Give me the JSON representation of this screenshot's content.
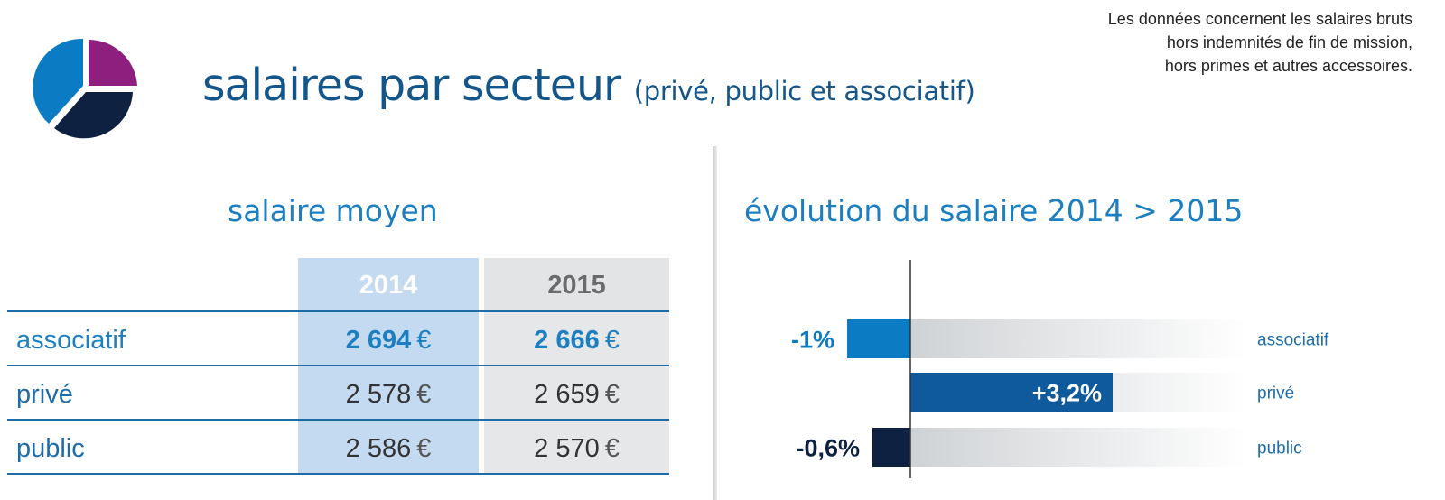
{
  "header": {
    "title": "salaires par secteur",
    "subtitle": "(privé, public et associatif)",
    "note_lines": [
      "Les données concernent les salaires bruts",
      "hors indemnités de fin de mission,",
      "hors primes et autres accessoires."
    ]
  },
  "colors": {
    "associatif": "#0b7cc4",
    "prive": "#0f5a9c",
    "public": "#0e2140",
    "icon_purple": "#8e1f7f",
    "icon_blue": "#0b7cc4",
    "icon_navy": "#0e2140",
    "title_blue": "#14568a",
    "accent_blue": "#1e7fc0"
  },
  "table": {
    "title": "salaire moyen",
    "columns": [
      "2014",
      "2015"
    ],
    "currency": "€",
    "rows": [
      {
        "label": "associatif",
        "v2014": "2 694",
        "v2015": "2 666",
        "bold": true
      },
      {
        "label": "privé",
        "v2014": "2 578",
        "v2015": "2 659",
        "bold": false
      },
      {
        "label": "public",
        "v2014": "2 586",
        "v2015": "2 570",
        "bold": false
      }
    ]
  },
  "chart_data": [
    {
      "type": "table",
      "title": "salaire moyen",
      "columns": [
        "2014",
        "2015"
      ],
      "rows": [
        "associatif",
        "privé",
        "public"
      ],
      "values": [
        [
          2694,
          2666
        ],
        [
          2578,
          2659
        ],
        [
          2586,
          2570
        ]
      ],
      "unit": "€"
    },
    {
      "type": "bar",
      "orientation": "horizontal",
      "title": "évolution du salaire 2014 > 2015",
      "categories": [
        "associatif",
        "privé",
        "public"
      ],
      "values": [
        -1,
        3.2,
        -0.6
      ],
      "value_labels": [
        "-1%",
        "+3,2%",
        "-0,6%"
      ],
      "unit": "%",
      "grid": false
    }
  ]
}
